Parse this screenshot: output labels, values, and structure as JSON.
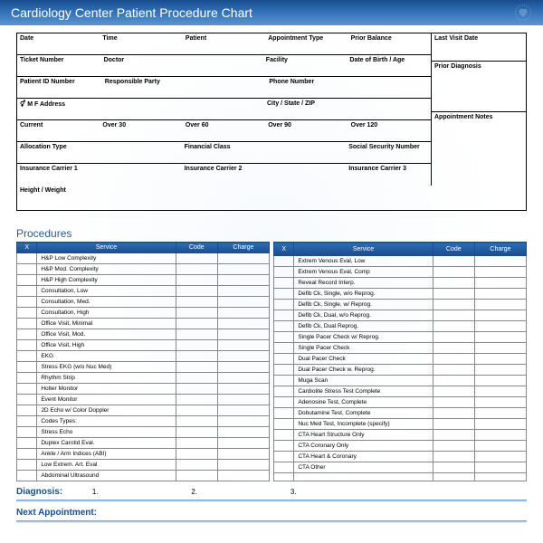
{
  "title": "Cardiology Center Patient Procedure Chart",
  "colors": {
    "header_gradient_top": "#1a4d8f",
    "header_gradient_bottom": "#5b94d1",
    "border": "#000000",
    "table_border": "#888888",
    "section_title": "#2d5a8f"
  },
  "info_rows": [
    [
      "Date",
      "Time",
      "Patient",
      "Appointment Type",
      "Prior Balance"
    ],
    [
      "Ticket Number",
      "Doctor",
      "",
      "Facility",
      "Date of Birth / Age"
    ],
    [
      "Patient ID Number",
      "Responsible Party",
      "",
      "Phone Number",
      ""
    ],
    [
      "⚥        M        F        Address",
      "",
      "",
      "City / State / ZIP",
      ""
    ],
    [
      "Current",
      "Over 30",
      "Over 60",
      "Over 90",
      "Over 120"
    ],
    [
      "Allocation Type",
      "",
      "Financial Class",
      "",
      "Social Security Number"
    ],
    [
      "Insurance Carrier 1",
      "",
      "Insurance Carrier 2",
      "",
      "Insurance Carrier 3"
    ]
  ],
  "right_col": [
    "Last Visit Date",
    "Prior Diagnosis",
    "Appointment Notes"
  ],
  "height_weight": "Height / Weight",
  "procedures_title": "Procedures",
  "proc_headers": {
    "x": "X",
    "service": "Service",
    "code": "Code",
    "charge": "Charge"
  },
  "proc_left": [
    "H&P Low Complexity",
    "H&P Mod. Complexity",
    "H&P High Complexity",
    "Consultation, Low",
    "Consultation, Med.",
    "Consultation, High",
    "Office Visit, Minimal",
    "Office Visit, Mod.",
    "Office Visit, High",
    "EKG",
    "Stress EKG (w/o Nuc Med)",
    "Rhythm Strip",
    "Holter Monitor",
    "Event Monitor",
    "2D Echo w/ Color Doppler",
    "Codes Types:",
    "Stress Echo",
    "Duplex Carotid Eval.",
    "Ankle / Arm Indices (ABI)",
    "Low Extrem. Art. Eval",
    "Abdominal Ultrasound"
  ],
  "proc_right": [
    "Extrem Venous Eval, Low",
    "Extrem Venous Eval, Comp",
    "Reveal Record Interp.",
    "Defib Ck, Single, w/o Reprog.",
    "Defib Ck, Single, w/ Reprog.",
    "Defib Ck, Dual, w/o Reprog.",
    "Defib Ck, Dual Reprog.",
    "Single Pacer Check w/ Reprog.",
    "Single Pacer Check",
    "Dual Pacer Check",
    "Dual Pacer Check w. Reprog.",
    "Muga Scan",
    "Cardiolite Stress Test Complete",
    "Adenosine Test, Complete",
    "Dobutamine Test, Complete",
    "Nuc Med Test, Incomplete (specify)",
    "CTA Heart Structure Only",
    "CTA Coronary Only",
    "CTA Heart & Coronary",
    "CTA Other",
    ""
  ],
  "diagnosis_label": "Diagnosis:",
  "diagnosis_nums": [
    "1.",
    "2.",
    "3."
  ],
  "next_appt": "Next Appointment:"
}
